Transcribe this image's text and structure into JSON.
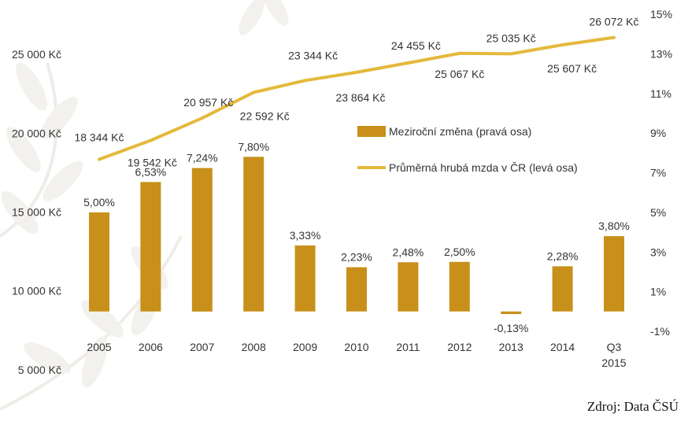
{
  "chart_data": {
    "type": "bar+line",
    "categories": [
      "2005",
      "2006",
      "2007",
      "2008",
      "2009",
      "2010",
      "2011",
      "2012",
      "2013",
      "2014",
      "Q3 2015"
    ],
    "series": [
      {
        "name": "Meziroční změna (pravá osa)",
        "type": "bar",
        "axis": "right",
        "values": [
          5.0,
          6.53,
          7.24,
          7.8,
          3.33,
          2.23,
          2.48,
          2.5,
          -0.13,
          2.28,
          3.8
        ],
        "labels": [
          "5,00%",
          "6,53%",
          "7,24%",
          "7,80%",
          "3,33%",
          "2,23%",
          "2,48%",
          "2,50%",
          "-0,13%",
          "2,28%",
          "3,80%"
        ],
        "color": "#C8901A"
      },
      {
        "name": "Průměrná hrubá mzda v ČR (levá osa)",
        "type": "line",
        "axis": "left",
        "values": [
          18344,
          19542,
          20957,
          22592,
          23344,
          23864,
          24455,
          25067,
          25035,
          25607,
          26072
        ],
        "labels": [
          "18 344 Kč",
          "19 542 Kč",
          "20 957 Kč",
          "22 592 Kč",
          "23 344 Kč",
          "23 864 Kč",
          "24 455 Kč",
          "25 067 Kč",
          "25 035 Kč",
          "25 607 Kč",
          "26 072 Kč"
        ],
        "color": "#E4B93C"
      }
    ],
    "left_axis": {
      "range": [
        3000,
        28000
      ],
      "ticks": [
        5000,
        10000,
        15000,
        20000,
        25000
      ],
      "tick_labels": [
        "5 000 Kč",
        "10 000 Kč",
        "15 000 Kč",
        "20 000 Kč",
        "25 000 Kč"
      ]
    },
    "right_axis": {
      "range": [
        -1,
        15
      ],
      "ticks": [
        -1,
        1,
        3,
        5,
        7,
        9,
        11,
        13,
        15
      ],
      "tick_labels": [
        "-1%",
        "1%",
        "3%",
        "5%",
        "7%",
        "9%",
        "11%",
        "13%",
        "15%"
      ]
    },
    "grid": false,
    "legend_position": "right-middle"
  },
  "source": "Zdroj: Data ČSÚ"
}
